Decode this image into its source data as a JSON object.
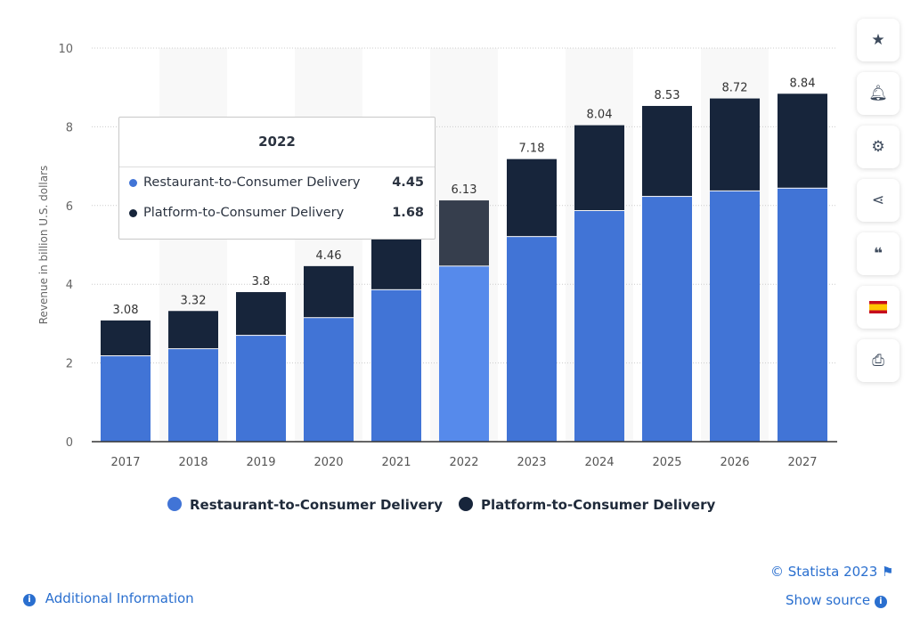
{
  "chart_data": {
    "type": "bar",
    "stacked": true,
    "categories": [
      "2017",
      "2018",
      "2019",
      "2020",
      "2021",
      "2022",
      "2023",
      "2024",
      "2025",
      "2026",
      "2027"
    ],
    "series": [
      {
        "name": "Restaurant-to-Consumer Delivery",
        "color": "#4174d6",
        "values": [
          2.17,
          2.35,
          2.69,
          3.14,
          3.85,
          4.45,
          5.2,
          5.86,
          6.22,
          6.36,
          6.43
        ]
      },
      {
        "name": "Platform-to-Consumer Delivery",
        "color": "#17253b",
        "values": [
          0.91,
          0.97,
          1.11,
          1.32,
          1.65,
          1.68,
          1.98,
          2.18,
          2.31,
          2.36,
          2.41
        ]
      }
    ],
    "totals": [
      "3.08",
      "3.32",
      "3.8",
      "4.46",
      "",
      "6.13",
      "7.18",
      "8.04",
      "8.53",
      "8.72",
      "8.84"
    ],
    "ylabel": "Revenue in billion U.S. dollars",
    "ylim": [
      0,
      10
    ],
    "yticks": [
      0,
      2,
      4,
      6,
      8,
      10
    ],
    "grid": true,
    "legend": "bottom",
    "highlighted": "2022"
  },
  "tooltip": {
    "title": "2022",
    "rows": [
      {
        "label": "Restaurant-to-Consumer Delivery",
        "value": "4.45",
        "color": "#4174d6"
      },
      {
        "label": "Platform-to-Consumer Delivery",
        "value": "1.68",
        "color": "#17253b"
      }
    ]
  },
  "sidebar": [
    "star-icon",
    "bell-icon",
    "gear-icon",
    "share-icon",
    "quote-icon",
    "flag-icon",
    "print-icon"
  ],
  "footer": {
    "copyright": "© Statista 2023",
    "show_source": "Show source",
    "additional_info": "Additional Information"
  }
}
